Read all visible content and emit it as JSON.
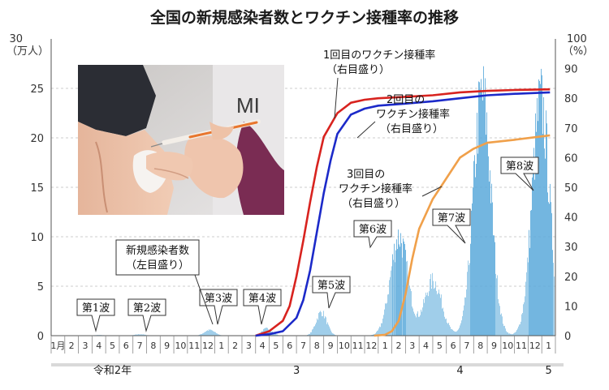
{
  "chart_data": {
    "type": "area+line",
    "title": "全国の新規感染者数とワクチン接種率の推移",
    "left_unit": [
      "30",
      "（万人）"
    ],
    "right_unit": [
      "100",
      "（%）"
    ],
    "left_ticks": [
      "0",
      "5",
      "10",
      "15",
      "20",
      "25"
    ],
    "right_ticks": [
      "0",
      "10",
      "20",
      "30",
      "40",
      "50",
      "60",
      "70",
      "80",
      "90"
    ],
    "ylim_left": [
      0,
      30
    ],
    "ylim_right": [
      0,
      100
    ],
    "month_labels": [
      "1月",
      "2",
      "3",
      "4",
      "5",
      "6",
      "7",
      "8",
      "9",
      "10",
      "11",
      "12",
      "1",
      "2",
      "3",
      "4",
      "5",
      "6",
      "7",
      "8",
      "9",
      "10",
      "11",
      "12",
      "1",
      "2",
      "3",
      "4",
      "5",
      "6",
      "7",
      "8",
      "9",
      "10",
      "11",
      "12",
      "1"
    ],
    "era_labels": [
      {
        "text": "令和2年",
        "month_index": 4.5
      },
      {
        "text": "3",
        "month_index": 18
      },
      {
        "text": "4",
        "month_index": 30
      },
      {
        "text": "5",
        "month_index": 36.5
      }
    ],
    "cases_peaks": [
      {
        "month": 3.5,
        "value": 0.07
      },
      {
        "month": 6.5,
        "value": 0.15
      },
      {
        "month": 11.6,
        "value": 0.6
      },
      {
        "month": 15.8,
        "value": 0.75
      },
      {
        "month": 19.8,
        "value": 2.5
      },
      {
        "month": 25.5,
        "value": 10.5
      },
      {
        "month": 28.0,
        "value": 5.8
      },
      {
        "month": 31.6,
        "value": 25.6
      },
      {
        "month": 35.9,
        "value": 24.8
      }
    ],
    "series": [
      {
        "name": "1回目のワクチン接種率",
        "color": "#d8231f",
        "x": [
          15.0,
          16.0,
          17.0,
          17.5,
          18.0,
          18.5,
          19.0,
          19.5,
          20.0,
          21.0,
          22.0,
          23.0,
          24.0,
          26.0,
          28.0,
          30.0,
          32.0,
          34.0,
          36.6
        ],
        "values": [
          0,
          1.5,
          5,
          10,
          20,
          32,
          45,
          57,
          67,
          75,
          78.5,
          79.5,
          80,
          80.5,
          81,
          82,
          82.5,
          82.8,
          83
        ]
      },
      {
        "name": "2回目のワクチン接種率",
        "color": "#1c2ac9",
        "x": [
          15.0,
          16.0,
          17.0,
          18.0,
          18.5,
          19.0,
          19.5,
          20.0,
          20.5,
          21.0,
          22.0,
          23.0,
          24.0,
          26.0,
          28.0,
          30.0,
          32.0,
          34.0,
          36.6
        ],
        "values": [
          0,
          0.5,
          1.5,
          6,
          12,
          22,
          35,
          48,
          59,
          68,
          74.5,
          76.5,
          77.5,
          78.2,
          79,
          80,
          81,
          81.5,
          82
        ]
      },
      {
        "name": "3回目のワクチン接種率",
        "color": "#f0a04a",
        "x": [
          23.7,
          24.5,
          25.0,
          25.5,
          26.0,
          26.5,
          27.0,
          28.0,
          29.0,
          30.0,
          31.0,
          32.0,
          34.0,
          36.6
        ],
        "values": [
          0,
          0.3,
          1.5,
          5,
          14,
          26,
          36,
          46,
          53,
          60,
          63,
          65,
          66,
          67.5
        ]
      }
    ]
  },
  "annotations": {
    "cases_lines": [
      "新規感染者数",
      "（左目盛り）"
    ],
    "dose1_lines": [
      "1回目のワクチン接種率",
      "（右目盛り）"
    ],
    "dose2_lines": [
      "2回目の",
      "ワクチン接種率",
      "（右目盛り）"
    ],
    "dose3_lines": [
      "3回目の",
      "ワクチン接種率",
      "（右目盛り）"
    ],
    "waves": [
      "第1波",
      "第2波",
      "第3波",
      "第4波",
      "第5波",
      "第6波",
      "第7波",
      "第8波"
    ]
  },
  "colors": {
    "bars": "#8fc6e6",
    "bars_dark": "#5aa9da",
    "dose1": "#d8231f",
    "dose2": "#1c2ac9",
    "dose3": "#f0a04a",
    "era_band": "#d9d9d9"
  },
  "photo": {
    "sign_text": "MI"
  }
}
